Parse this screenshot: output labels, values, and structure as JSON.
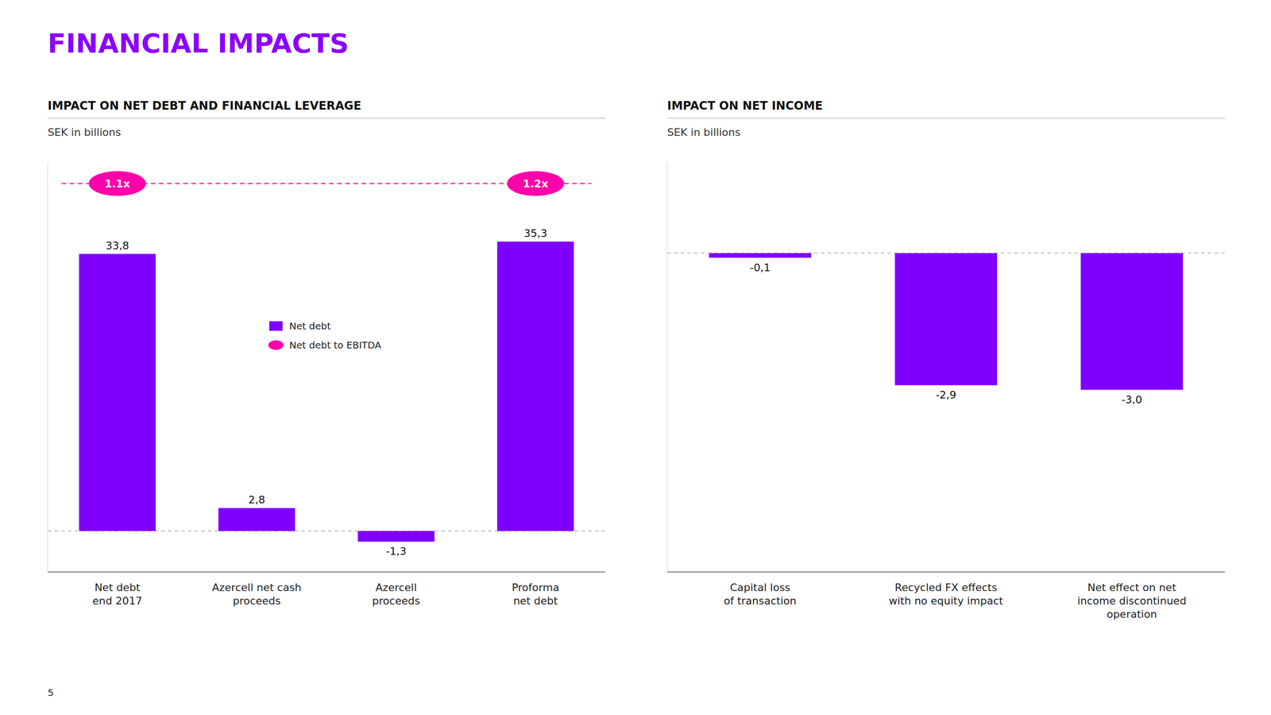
{
  "title": "FINANCIAL IMPACTS",
  "title_color": "#8B00FF",
  "page_number": "5",
  "chart_data": [
    {
      "type": "bar",
      "title": "IMPACT ON NET DEBT AND FINANCIAL LEVERAGE",
      "subtitle": "SEK in billions",
      "categories": [
        "Net debt\nend 2017",
        "Azercell net cash\nproceeds",
        "Azercell\nproceeds",
        "Proforma\nnet debt"
      ],
      "series": [
        {
          "name": "Net debt",
          "type": "bar",
          "color": "#8000FF",
          "values": [
            33.8,
            2.8,
            -1.3,
            35.3
          ],
          "value_labels": [
            "33,8",
            "2,8",
            "-1,3",
            "35,3"
          ]
        },
        {
          "name": "Net debt to EBITDA",
          "type": "badge",
          "color": "#FF00AA",
          "line_style": "dashed",
          "values": [
            1.1,
            null,
            null,
            1.2
          ],
          "value_labels": [
            "1.1x",
            null,
            null,
            "1.2x"
          ]
        }
      ],
      "ylim": [
        -5,
        45
      ],
      "grid": false,
      "legend": "center",
      "data_labels": true,
      "tick_labels": "x"
    },
    {
      "type": "bar",
      "title": "IMPACT ON NET INCOME",
      "subtitle": "SEK in billions",
      "categories": [
        "Capital loss\nof transaction",
        "Recycled FX effects\nwith no equity impact",
        "Net effect on net\nincome discontinued\noperation"
      ],
      "values": [
        -0.1,
        -2.9,
        -3.0
      ],
      "value_labels": [
        "-0,1",
        "-2,9",
        "-3,0"
      ],
      "color": "#8000FF",
      "ylim": [
        -7,
        2
      ],
      "grid": false,
      "data_labels": true,
      "tick_labels": "x"
    }
  ]
}
